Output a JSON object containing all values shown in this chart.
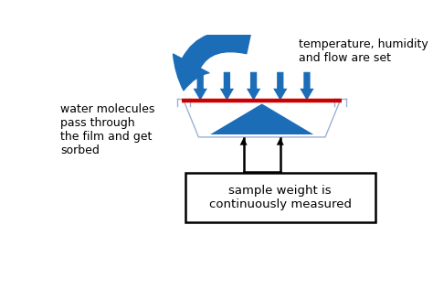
{
  "blue_color": "#1B6DB8",
  "red_color": "#CC0000",
  "clip_color": "#9EB0D4",
  "bg_color": "#FFFFFF",
  "text_top_right": "temperature, humidity\nand flow are set",
  "text_left": "water molecules\npass through\nthe film and get\nsorbed",
  "text_bottom": "sample weight is\ncontinuously measured",
  "figsize": [
    4.74,
    3.16
  ],
  "dpi": 100,
  "xlim": [
    0,
    10
  ],
  "ylim": [
    0,
    6.67
  ]
}
